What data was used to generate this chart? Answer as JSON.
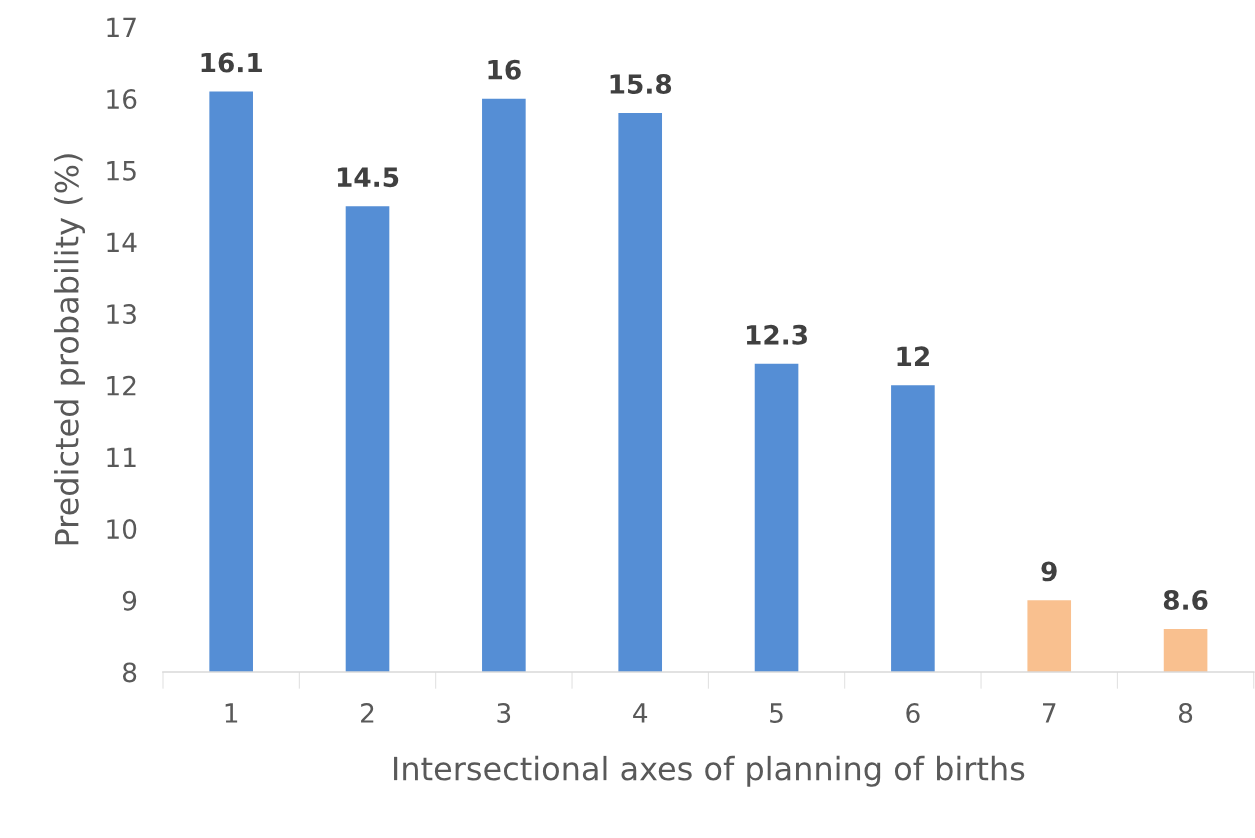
{
  "chart_data": {
    "type": "bar",
    "xlabel": "Intersectional axes of planning of births",
    "ylabel": "Predicted probability (%)",
    "categories": [
      "1",
      "2",
      "3",
      "4",
      "5",
      "6",
      "7",
      "8"
    ],
    "values": [
      16.1,
      14.5,
      16,
      15.8,
      12.3,
      12,
      9,
      8.6
    ],
    "colors": [
      "#558ed5",
      "#558ed5",
      "#558ed5",
      "#558ed5",
      "#558ed5",
      "#558ed5",
      "#f9c08f",
      "#f9c08f"
    ],
    "ylim": [
      8,
      17
    ],
    "yticks": [
      8,
      9,
      10,
      11,
      12,
      13,
      14,
      15,
      16,
      17
    ],
    "grid": false,
    "data_labels": true
  }
}
